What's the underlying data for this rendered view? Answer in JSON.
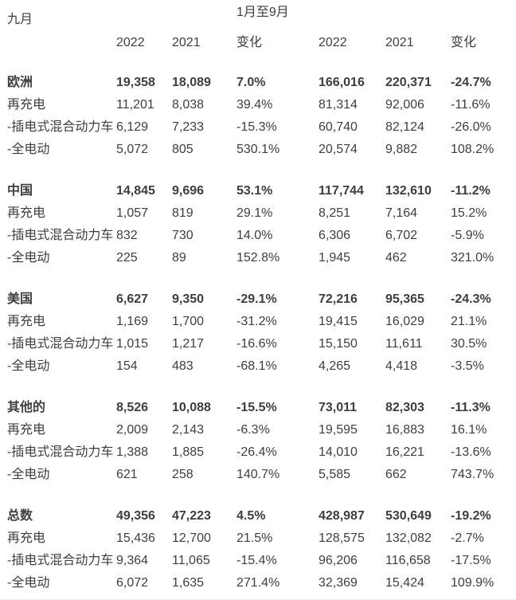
{
  "chart_data": {
    "type": "table",
    "period_left_label": "九月",
    "period_right_label": "1月至9月",
    "columns": [
      "2022",
      "2021",
      "变化",
      "2022",
      "2021",
      "变化"
    ],
    "groups": [
      {
        "name": "欧洲",
        "totals": [
          "19,358",
          "18,089",
          "7.0%",
          "166,016",
          "220,371",
          "-24.7%"
        ],
        "rows": [
          {
            "label": "再充电",
            "values": [
              "11,201",
              "8,038",
              "39.4%",
              "81,314",
              "92,006",
              "-11.6%"
            ]
          },
          {
            "label": "-插电式混合动力车",
            "values": [
              "6,129",
              "7,233",
              "-15.3%",
              "60,740",
              "82,124",
              "-26.0%"
            ]
          },
          {
            "label": "-全电动",
            "values": [
              "5,072",
              "805",
              "530.1%",
              "20,574",
              "9,882",
              "108.2%"
            ]
          }
        ]
      },
      {
        "name": "中国",
        "totals": [
          "14,845",
          "9,696",
          "53.1%",
          "117,744",
          "132,610",
          "-11.2%"
        ],
        "rows": [
          {
            "label": "再充电",
            "values": [
              "1,057",
              "819",
              "29.1%",
              "8,251",
              "7,164",
              "15.2%"
            ]
          },
          {
            "label": "-插电式混合动力车",
            "values": [
              "832",
              "730",
              "14.0%",
              "6,306",
              "6,702",
              "-5.9%"
            ]
          },
          {
            "label": "-全电动",
            "values": [
              "225",
              "89",
              "152.8%",
              "1,945",
              "462",
              "321.0%"
            ]
          }
        ]
      },
      {
        "name": "美国",
        "totals": [
          "6,627",
          "9,350",
          "-29.1%",
          "72,216",
          "95,365",
          "-24.3%"
        ],
        "rows": [
          {
            "label": "再充电",
            "values": [
              "1,169",
              "1,700",
              "-31.2%",
              "19,415",
              "16,029",
              "21.1%"
            ]
          },
          {
            "label": "-插电式混合动力车",
            "values": [
              "1,015",
              "1,217",
              "-16.6%",
              "15,150",
              "11,611",
              "30.5%"
            ]
          },
          {
            "label": "-全电动",
            "values": [
              "154",
              "483",
              "-68.1%",
              "4,265",
              "4,418",
              "-3.5%"
            ]
          }
        ]
      },
      {
        "name": "其他的",
        "totals": [
          "8,526",
          "10,088",
          "-15.5%",
          "73,011",
          "82,303",
          "-11.3%"
        ],
        "rows": [
          {
            "label": "再充电",
            "values": [
              "2,009",
              "2,143",
              "-6.3%",
              "19,595",
              "16,883",
              "16.1%"
            ]
          },
          {
            "label": "-插电式混合动力车",
            "values": [
              "1,388",
              "1,885",
              "-26.4%",
              "14,010",
              "16,221",
              "-13.6%"
            ]
          },
          {
            "label": "-全电动",
            "values": [
              "621",
              "258",
              "140.7%",
              "5,585",
              "662",
              "743.7%"
            ]
          }
        ]
      },
      {
        "name": "总数",
        "totals": [
          "49,356",
          "47,223",
          "4.5%",
          "428,987",
          "530,649",
          "-19.2%"
        ],
        "rows": [
          {
            "label": "再充电",
            "values": [
              "15,436",
              "12,700",
              "21.5%",
              "128,575",
              "132,082",
              "-2.7%"
            ]
          },
          {
            "label": "-插电式混合动力车",
            "values": [
              "9,364",
              "11,065",
              "-15.4%",
              "96,206",
              "116,658",
              "-17.5%"
            ]
          },
          {
            "label": "-全电动",
            "values": [
              "6,072",
              "1,635",
              "271.4%",
              "32,369",
              "15,424",
              "109.9%"
            ]
          }
        ]
      }
    ]
  }
}
